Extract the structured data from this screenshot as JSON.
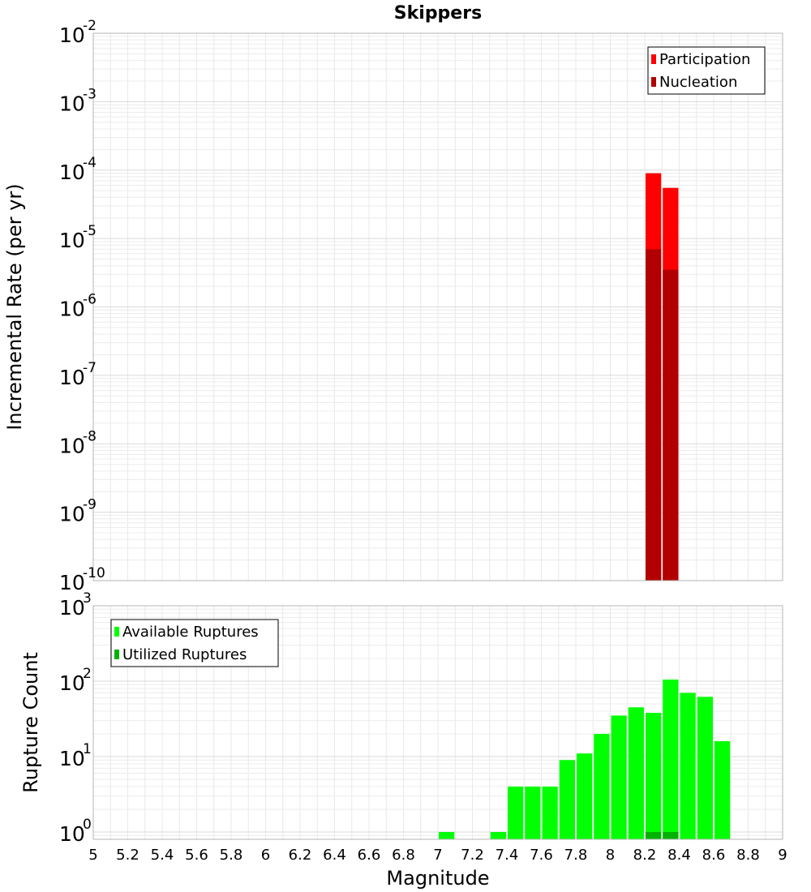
{
  "chart_data": [
    {
      "type": "bar",
      "title": "Skippers",
      "xlabel": "",
      "ylabel": "Incremental Rate (per yr)",
      "yscale": "log",
      "ylim": [
        1e-10,
        0.01
      ],
      "xlim": [
        5,
        9
      ],
      "grid": true,
      "legend_position": "top-right",
      "y_ticks": [
        {
          "base": "10",
          "exp": "-10"
        },
        {
          "base": "10",
          "exp": "-9"
        },
        {
          "base": "10",
          "exp": "-8"
        },
        {
          "base": "10",
          "exp": "-7"
        },
        {
          "base": "10",
          "exp": "-6"
        },
        {
          "base": "10",
          "exp": "-5"
        },
        {
          "base": "10",
          "exp": "-4"
        },
        {
          "base": "10",
          "exp": "-3"
        },
        {
          "base": "10",
          "exp": "-2"
        }
      ],
      "series": [
        {
          "name": "Participation",
          "color": "#ff0000",
          "x": [
            8.25,
            8.35
          ],
          "values": [
            9e-05,
            5.5e-05
          ]
        },
        {
          "name": "Nucleation",
          "color": "#b20000",
          "x": [
            8.25,
            8.35
          ],
          "values": [
            7e-06,
            3.5e-06
          ]
        }
      ]
    },
    {
      "type": "bar",
      "title": "",
      "xlabel": "Magnitude",
      "ylabel": "Rupture Count",
      "yscale": "log",
      "ylim": [
        0.8,
        1000
      ],
      "xlim": [
        5,
        9
      ],
      "grid": true,
      "legend_position": "top-left",
      "x_ticks": [
        "5",
        "5.2",
        "5.4",
        "5.6",
        "5.8",
        "6",
        "6.2",
        "6.4",
        "6.6",
        "6.8",
        "7",
        "7.2",
        "7.4",
        "7.6",
        "7.8",
        "8",
        "8.2",
        "8.4",
        "8.6",
        "8.8",
        "9"
      ],
      "y_ticks": [
        {
          "base": "10",
          "exp": "0"
        },
        {
          "base": "10",
          "exp": "1"
        },
        {
          "base": "10",
          "exp": "2"
        },
        {
          "base": "10",
          "exp": "3"
        }
      ],
      "series": [
        {
          "name": "Available Ruptures",
          "color": "#00ff00",
          "x": [
            7.05,
            7.35,
            7.45,
            7.55,
            7.65,
            7.75,
            7.85,
            7.95,
            8.05,
            8.15,
            8.25,
            8.35,
            8.45,
            8.55,
            8.65
          ],
          "values": [
            1,
            1,
            4,
            4,
            4,
            9,
            11,
            20,
            35,
            45,
            38,
            105,
            70,
            62,
            16
          ]
        },
        {
          "name": "Utilized Ruptures",
          "color": "#00b200",
          "x": [
            8.25,
            8.35
          ],
          "values": [
            1,
            1
          ]
        }
      ]
    }
  ]
}
